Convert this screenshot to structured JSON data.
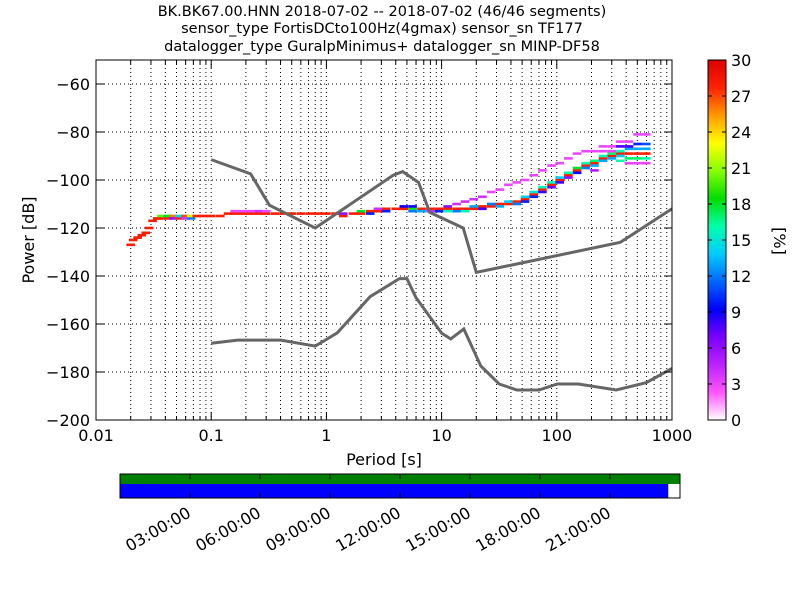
{
  "chart_data": {
    "type": "heatmap",
    "title_lines": [
      "BK.BK67.00.HNN   2018-07-02 -- 2018-07-02  (46/46 segments)",
      "sensor_type FortisDCto100Hz(4gmax) sensor_sn TF177",
      "datalogger_type GuralpMinimus+ datalogger_sn MINP-DF58"
    ],
    "xlabel": "Period [s]",
    "ylabel": "Power [dB]",
    "x_scale": "log",
    "xlim": [
      0.01,
      1000
    ],
    "ylim": [
      -200,
      -50
    ],
    "x_ticks": [
      {
        "value": 0.01,
        "label": "0.01"
      },
      {
        "value": 0.1,
        "label": "0.1"
      },
      {
        "value": 1,
        "label": "1"
      },
      {
        "value": 10,
        "label": "10"
      },
      {
        "value": 100,
        "label": "100"
      },
      {
        "value": 1000,
        "label": "1000"
      }
    ],
    "y_ticks": [
      {
        "value": -60,
        "label": "−60"
      },
      {
        "value": -80,
        "label": "−80"
      },
      {
        "value": -100,
        "label": "−100"
      },
      {
        "value": -120,
        "label": "−120"
      },
      {
        "value": -140,
        "label": "−140"
      },
      {
        "value": -160,
        "label": "−160"
      },
      {
        "value": -180,
        "label": "−180"
      },
      {
        "value": -200,
        "label": "−200"
      }
    ],
    "grid": true,
    "colorbar": {
      "label": "[%]",
      "range": [
        0,
        30
      ],
      "ticks": [
        {
          "value": 0,
          "label": "0"
        },
        {
          "value": 3,
          "label": "3"
        },
        {
          "value": 6,
          "label": "6"
        },
        {
          "value": 9,
          "label": "9"
        },
        {
          "value": 12,
          "label": "12"
        },
        {
          "value": 15,
          "label": "15"
        },
        {
          "value": 18,
          "label": "18"
        },
        {
          "value": 21,
          "label": "21"
        },
        {
          "value": 24,
          "label": "24"
        },
        {
          "value": 27,
          "label": "27"
        },
        {
          "value": 30,
          "label": "30"
        }
      ],
      "colors": [
        "#ffffff",
        "#ff55ff",
        "#bb22ff",
        "#7a00ff",
        "#0000ff",
        "#0066ff",
        "#00ccff",
        "#00ffaa",
        "#00dd00",
        "#88ff00",
        "#ffff00",
        "#ff9900",
        "#ff2200",
        "#dd0000"
      ]
    },
    "series": [
      {
        "name": "NHNM",
        "color": "#666666",
        "points": [
          [
            0.1,
            -91.5
          ],
          [
            0.22,
            -97.4
          ],
          [
            0.32,
            -110.5
          ],
          [
            0.8,
            -120
          ],
          [
            3.8,
            -98
          ],
          [
            4.6,
            -96.5
          ],
          [
            6.3,
            -101
          ],
          [
            7.9,
            -113.5
          ],
          [
            15.4,
            -120
          ],
          [
            20,
            -138.5
          ],
          [
            354.8,
            -126
          ],
          [
            1000,
            -112
          ]
        ]
      },
      {
        "name": "NLNM",
        "color": "#666666",
        "points": [
          [
            0.1,
            -168
          ],
          [
            0.17,
            -166.7
          ],
          [
            0.4,
            -166.7
          ],
          [
            0.8,
            -169.2
          ],
          [
            1.24,
            -163.7
          ],
          [
            2.4,
            -148.6
          ],
          [
            4.3,
            -141.1
          ],
          [
            5,
            -141.1
          ],
          [
            6,
            -149
          ],
          [
            10,
            -163.8
          ],
          [
            12,
            -166.2
          ],
          [
            15.6,
            -162.1
          ],
          [
            21.9,
            -177.5
          ],
          [
            31.6,
            -185
          ],
          [
            45,
            -187.5
          ],
          [
            70,
            -187.5
          ],
          [
            101,
            -185
          ],
          [
            154,
            -185
          ],
          [
            328,
            -187.5
          ],
          [
            600,
            -184.4
          ],
          [
            1000,
            -178.5
          ]
        ]
      }
    ],
    "ppsd_bands": [
      {
        "p": 0.02,
        "db": -127,
        "level": 28
      },
      {
        "p": 0.021,
        "db": -125,
        "level": 28
      },
      {
        "p": 0.023,
        "db": -124,
        "level": 28
      },
      {
        "p": 0.025,
        "db": -123,
        "level": 28
      },
      {
        "p": 0.027,
        "db": -122,
        "level": 28
      },
      {
        "p": 0.029,
        "db": -120,
        "level": 28
      },
      {
        "p": 0.031,
        "db": -117,
        "level": 28
      },
      {
        "p": 0.034,
        "db": -116,
        "level": 28
      },
      {
        "p": 0.037,
        "db": -116,
        "level": 28
      },
      {
        "p": 0.037,
        "db": -115,
        "level": 20
      },
      {
        "p": 0.042,
        "db": -116,
        "level": 28
      },
      {
        "p": 0.042,
        "db": -115,
        "level": 18
      },
      {
        "p": 0.047,
        "db": -115,
        "level": 26
      },
      {
        "p": 0.047,
        "db": -116,
        "level": 6
      },
      {
        "p": 0.053,
        "db": -116,
        "level": 28
      },
      {
        "p": 0.053,
        "db": -115,
        "level": 14
      },
      {
        "p": 0.06,
        "db": -115,
        "level": 27
      },
      {
        "p": 0.06,
        "db": -116,
        "level": 4
      },
      {
        "p": 0.067,
        "db": -116,
        "level": 12
      },
      {
        "p": 0.067,
        "db": -115,
        "level": 22
      },
      {
        "p": 0.075,
        "db": -115,
        "level": 28
      },
      {
        "p": 0.085,
        "db": -115,
        "level": 28
      },
      {
        "p": 0.1,
        "db": -115,
        "level": 28
      },
      {
        "p": 0.12,
        "db": -115,
        "level": 28
      },
      {
        "p": 0.14,
        "db": -114,
        "level": 28
      },
      {
        "p": 0.16,
        "db": -114,
        "level": 28
      },
      {
        "p": 0.16,
        "db": -113,
        "level": 3
      },
      {
        "p": 0.19,
        "db": -114,
        "level": 28
      },
      {
        "p": 0.19,
        "db": -113,
        "level": 3
      },
      {
        "p": 0.22,
        "db": -114,
        "level": 28
      },
      {
        "p": 0.22,
        "db": -113,
        "level": 3
      },
      {
        "p": 0.26,
        "db": -114,
        "level": 28
      },
      {
        "p": 0.26,
        "db": -113,
        "level": 4
      },
      {
        "p": 0.3,
        "db": -114,
        "level": 28
      },
      {
        "p": 0.3,
        "db": -113,
        "level": 3
      },
      {
        "p": 0.36,
        "db": -114,
        "level": 28
      },
      {
        "p": 0.43,
        "db": -114,
        "level": 28
      },
      {
        "p": 0.5,
        "db": -114,
        "level": 28
      },
      {
        "p": 0.6,
        "db": -114,
        "level": 28
      },
      {
        "p": 0.72,
        "db": -114,
        "level": 28
      },
      {
        "p": 0.85,
        "db": -114,
        "level": 28
      },
      {
        "p": 1.0,
        "db": -114,
        "level": 28
      },
      {
        "p": 1.2,
        "db": -114,
        "level": 28
      },
      {
        "p": 1.4,
        "db": -115,
        "level": 28
      },
      {
        "p": 1.4,
        "db": -114,
        "level": 6
      },
      {
        "p": 1.7,
        "db": -114,
        "level": 28
      },
      {
        "p": 2.0,
        "db": -114,
        "level": 28
      },
      {
        "p": 2.0,
        "db": -113,
        "level": 18
      },
      {
        "p": 2.4,
        "db": -113,
        "level": 28
      },
      {
        "p": 2.4,
        "db": -114,
        "level": 10
      },
      {
        "p": 2.8,
        "db": -113,
        "level": 28
      },
      {
        "p": 2.8,
        "db": -112,
        "level": 4
      },
      {
        "p": 3.3,
        "db": -112,
        "level": 28
      },
      {
        "p": 3.3,
        "db": -113,
        "level": 10
      },
      {
        "p": 4.0,
        "db": -112,
        "level": 28
      },
      {
        "p": 4.7,
        "db": -112,
        "level": 28
      },
      {
        "p": 4.7,
        "db": -111,
        "level": 9
      },
      {
        "p": 5.6,
        "db": -112,
        "level": 18
      },
      {
        "p": 5.6,
        "db": -111,
        "level": 9
      },
      {
        "p": 5.6,
        "db": -113,
        "level": 12
      },
      {
        "p": 6.7,
        "db": -112,
        "level": 28
      },
      {
        "p": 6.7,
        "db": -113,
        "level": 13
      },
      {
        "p": 8.0,
        "db": -112,
        "level": 28
      },
      {
        "p": 8.0,
        "db": -113,
        "level": 4
      },
      {
        "p": 9.5,
        "db": -112,
        "level": 28
      },
      {
        "p": 9.5,
        "db": -113,
        "level": 10
      },
      {
        "p": 11.3,
        "db": -112,
        "level": 28
      },
      {
        "p": 11.3,
        "db": -113,
        "level": 16
      },
      {
        "p": 11.3,
        "db": -111,
        "level": 6
      },
      {
        "p": 13.5,
        "db": -112,
        "level": 28
      },
      {
        "p": 13.5,
        "db": -113,
        "level": 12
      },
      {
        "p": 13.5,
        "db": -110,
        "level": 4
      },
      {
        "p": 16.0,
        "db": -112,
        "level": 28
      },
      {
        "p": 16.0,
        "db": -113,
        "level": 16
      },
      {
        "p": 16.0,
        "db": -109,
        "level": 4
      },
      {
        "p": 19.0,
        "db": -112,
        "level": 28
      },
      {
        "p": 19.0,
        "db": -111,
        "level": 13
      },
      {
        "p": 19.0,
        "db": -108,
        "level": 4
      },
      {
        "p": 22.6,
        "db": -111,
        "level": 28
      },
      {
        "p": 22.6,
        "db": -112,
        "level": 8
      },
      {
        "p": 22.6,
        "db": -107,
        "level": 4
      },
      {
        "p": 27.0,
        "db": -111,
        "level": 28
      },
      {
        "p": 27.0,
        "db": -110,
        "level": 12
      },
      {
        "p": 27.0,
        "db": -105,
        "level": 3
      },
      {
        "p": 32.0,
        "db": -110,
        "level": 28
      },
      {
        "p": 32.0,
        "db": -111,
        "level": 13
      },
      {
        "p": 32.0,
        "db": -104,
        "level": 3
      },
      {
        "p": 38.0,
        "db": -110,
        "level": 28
      },
      {
        "p": 38.0,
        "db": -109,
        "level": 14
      },
      {
        "p": 38.0,
        "db": -102,
        "level": 3
      },
      {
        "p": 45.0,
        "db": -109,
        "level": 28
      },
      {
        "p": 45.0,
        "db": -110,
        "level": 12
      },
      {
        "p": 45.0,
        "db": -101,
        "level": 3
      },
      {
        "p": 53.0,
        "db": -108,
        "level": 28
      },
      {
        "p": 53.0,
        "db": -107,
        "level": 14
      },
      {
        "p": 53.0,
        "db": -109,
        "level": 10
      },
      {
        "p": 53.0,
        "db": -100,
        "level": 3
      },
      {
        "p": 63.0,
        "db": -106,
        "level": 28
      },
      {
        "p": 63.0,
        "db": -105,
        "level": 15
      },
      {
        "p": 63.0,
        "db": -107,
        "level": 10
      },
      {
        "p": 63.0,
        "db": -98,
        "level": 3
      },
      {
        "p": 75.0,
        "db": -104,
        "level": 28
      },
      {
        "p": 75.0,
        "db": -103,
        "level": 16
      },
      {
        "p": 75.0,
        "db": -105,
        "level": 8
      },
      {
        "p": 75.0,
        "db": -96,
        "level": 3
      },
      {
        "p": 90.0,
        "db": -102,
        "level": 28
      },
      {
        "p": 90.0,
        "db": -101,
        "level": 16
      },
      {
        "p": 90.0,
        "db": -103,
        "level": 7
      },
      {
        "p": 90.0,
        "db": -94,
        "level": 3
      },
      {
        "p": 106.0,
        "db": -100,
        "level": 28
      },
      {
        "p": 106.0,
        "db": -99,
        "level": 14
      },
      {
        "p": 106.0,
        "db": -101,
        "level": 8
      },
      {
        "p": 106.0,
        "db": -93,
        "level": 3
      },
      {
        "p": 126.0,
        "db": -98,
        "level": 28
      },
      {
        "p": 126.0,
        "db": -97,
        "level": 16
      },
      {
        "p": 126.0,
        "db": -99,
        "level": 6
      },
      {
        "p": 126.0,
        "db": -91,
        "level": 3
      },
      {
        "p": 150.0,
        "db": -96,
        "level": 28
      },
      {
        "p": 150.0,
        "db": -95,
        "level": 18
      },
      {
        "p": 150.0,
        "db": -97,
        "level": 9
      },
      {
        "p": 150.0,
        "db": -89,
        "level": 3
      },
      {
        "p": 178.0,
        "db": -94,
        "level": 28
      },
      {
        "p": 178.0,
        "db": -93,
        "level": 16
      },
      {
        "p": 178.0,
        "db": -95,
        "level": 12
      },
      {
        "p": 178.0,
        "db": -88,
        "level": 3
      },
      {
        "p": 212.0,
        "db": -93,
        "level": 28
      },
      {
        "p": 212.0,
        "db": -92,
        "level": 17
      },
      {
        "p": 212.0,
        "db": -94,
        "level": 13
      },
      {
        "p": 212.0,
        "db": -96,
        "level": 5
      },
      {
        "p": 212.0,
        "db": -88,
        "level": 3
      },
      {
        "p": 252.0,
        "db": -91,
        "level": 28
      },
      {
        "p": 252.0,
        "db": -90,
        "level": 16
      },
      {
        "p": 252.0,
        "db": -92,
        "level": 13
      },
      {
        "p": 252.0,
        "db": -88,
        "level": 3
      },
      {
        "p": 252.0,
        "db": -86,
        "level": 3
      },
      {
        "p": 300.0,
        "db": -90,
        "level": 28
      },
      {
        "p": 300.0,
        "db": -89,
        "level": 17
      },
      {
        "p": 300.0,
        "db": -91,
        "level": 13
      },
      {
        "p": 300.0,
        "db": -88,
        "level": 3
      },
      {
        "p": 300.0,
        "db": -86,
        "level": 3
      },
      {
        "p": 356.0,
        "db": -89,
        "level": 28
      },
      {
        "p": 356.0,
        "db": -88,
        "level": 16
      },
      {
        "p": 356.0,
        "db": -90,
        "level": 14
      },
      {
        "p": 356.0,
        "db": -92,
        "level": 16
      },
      {
        "p": 356.0,
        "db": -86,
        "level": 8
      },
      {
        "p": 356.0,
        "db": -84,
        "level": 3
      },
      {
        "p": 423.0,
        "db": -89,
        "level": 28
      },
      {
        "p": 423.0,
        "db": -87,
        "level": 13
      },
      {
        "p": 423.0,
        "db": -91,
        "level": 17
      },
      {
        "p": 423.0,
        "db": -86,
        "level": 8
      },
      {
        "p": 423.0,
        "db": -84,
        "level": 3
      },
      {
        "p": 423.0,
        "db": -93,
        "level": 3
      },
      {
        "p": 503.0,
        "db": -89,
        "level": 28
      },
      {
        "p": 503.0,
        "db": -87,
        "level": 13
      },
      {
        "p": 503.0,
        "db": -91,
        "level": 17
      },
      {
        "p": 503.0,
        "db": -85,
        "level": 10
      },
      {
        "p": 503.0,
        "db": -81,
        "level": 3
      },
      {
        "p": 503.0,
        "db": -93,
        "level": 3
      },
      {
        "p": 598.0,
        "db": -89,
        "level": 28
      },
      {
        "p": 598.0,
        "db": -87,
        "level": 13
      },
      {
        "p": 598.0,
        "db": -91,
        "level": 16
      },
      {
        "p": 598.0,
        "db": -85,
        "level": 11
      },
      {
        "p": 598.0,
        "db": -81,
        "level": 3
      },
      {
        "p": 598.0,
        "db": -93,
        "level": 3
      }
    ],
    "timeline": {
      "tick_labels": [
        "03:00:00",
        "06:00:00",
        "09:00:00",
        "12:00:00",
        "15:00:00",
        "18:00:00",
        "21:00:00"
      ],
      "tick_hours": [
        3,
        6,
        9,
        12,
        15,
        18,
        21
      ],
      "range_hours": [
        0,
        24
      ],
      "available_fraction": 1.0,
      "used_fraction": 0.979,
      "colors": {
        "available": "#008000",
        "used": "#0000ff"
      }
    }
  }
}
